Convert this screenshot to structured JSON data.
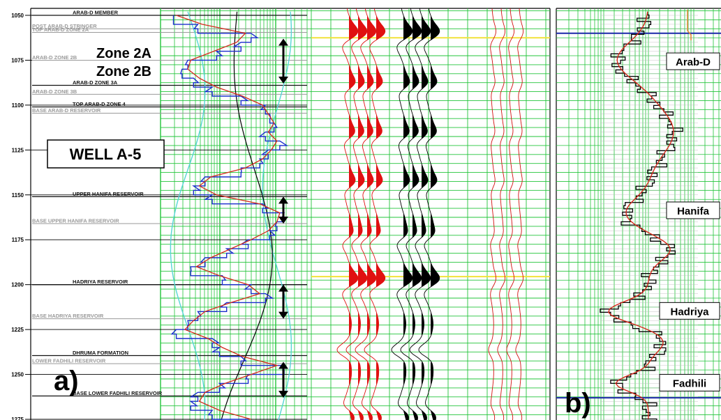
{
  "panel_a": {
    "label": "a)",
    "well_label": "WELL A-5",
    "zone_labels": [
      "Zone 2A",
      "Zone 2B"
    ]
  },
  "panel_b": {
    "label": "b)"
  },
  "chart_data": [
    {
      "type": "line",
      "panel": "a",
      "y_ticks": [
        1050,
        1075,
        1100,
        1125,
        1150,
        1175,
        1200,
        1225,
        1250,
        1275
      ],
      "ylim": [
        1048,
        1276
      ],
      "grid": true,
      "horizons": [
        {
          "name": "ARAB-D MEMBER",
          "depth": 1050,
          "style": "dark"
        },
        {
          "name": "POST ARAB-D STRINGER",
          "depth": 1057.5,
          "style": "grey"
        },
        {
          "name": "TOP ARAB-D ZONE 2A",
          "depth": 1059.5,
          "style": "grey"
        },
        {
          "name": "ARAB-D ZONE 2B",
          "depth": 1075,
          "style": "grey"
        },
        {
          "name": "ARAB-D ZONE 3A",
          "depth": 1089,
          "style": "dark"
        },
        {
          "name": "ARAB-D ZONE 3B",
          "depth": 1094,
          "style": "grey"
        },
        {
          "name": "TOP ARAB-D ZONE 4",
          "depth": 1101,
          "style": "dark"
        },
        {
          "name": "BASE ARAB-D RESERVOIR",
          "depth": 1104.5,
          "style": "grey"
        },
        {
          "name": "UPPER HANIFA RESERVOIR",
          "depth": 1151,
          "style": "dark"
        },
        {
          "name": "BASE UPPER HANIFA RESERVOIR",
          "depth": 1166,
          "style": "grey"
        },
        {
          "name": "HADRIYA RESERVOIR",
          "depth": 1200,
          "style": "dark"
        },
        {
          "name": "BASE HADRIYA RESERVOIR",
          "depth": 1219,
          "style": "grey"
        },
        {
          "name": "DHRUMA FORMATION",
          "depth": 1239.5,
          "style": "dark"
        },
        {
          "name": "LOWER FADHILI RESERVOIR",
          "depth": 1244,
          "style": "grey"
        },
        {
          "name": "BASE LOWER FADHILI RESERVOIR",
          "depth": 1262,
          "style": "dark"
        }
      ],
      "reservoir_intervals": [
        {
          "top": 1063,
          "base": 1088
        },
        {
          "top": 1151,
          "base": 1166
        },
        {
          "top": 1200,
          "base": 1219
        },
        {
          "top": 1243,
          "base": 1263
        }
      ],
      "seismic_events": [
        1062.5,
        1195.5
      ],
      "series": [
        {
          "color": "#1a2ecc",
          "x_frac": [
            0.08,
            0.25,
            0.62,
            0.55,
            0.38,
            0.18,
            0.14,
            0.22,
            0.35,
            0.55,
            0.72,
            0.75,
            0.78,
            0.72,
            0.82,
            0.74,
            0.68,
            0.55,
            0.3,
            0.22,
            0.35,
            0.7,
            0.85,
            0.8,
            0.75,
            0.6,
            0.45,
            0.3,
            0.2,
            0.42,
            0.62,
            0.72,
            0.45,
            0.25,
            0.18,
            0.1,
            0.35,
            0.4,
            0.55,
            0.85,
            0.6,
            0.4,
            0.25,
            0.2,
            0.35,
            0.6
          ]
        },
        {
          "color": "#d42a1c",
          "x_frac": [
            0.1,
            0.28,
            0.58,
            0.52,
            0.36,
            0.2,
            0.18,
            0.26,
            0.38,
            0.56,
            0.7,
            0.74,
            0.78,
            0.74,
            0.8,
            0.76,
            0.7,
            0.58,
            0.34,
            0.26,
            0.38,
            0.68,
            0.82,
            0.8,
            0.74,
            0.62,
            0.48,
            0.34,
            0.24,
            0.4,
            0.6,
            0.68,
            0.48,
            0.3,
            0.22,
            0.16,
            0.32,
            0.42,
            0.56,
            0.8,
            0.62,
            0.44,
            0.3,
            0.26,
            0.4,
            0.62
          ]
        }
      ]
    },
    {
      "type": "line",
      "panel": "b",
      "labels": [
        {
          "name": "Arab-D",
          "depth": 1076
        },
        {
          "name": "Hanifa",
          "depth": 1159
        },
        {
          "name": "Hadriya",
          "depth": 1215
        },
        {
          "name": "Fadhili",
          "depth": 1255
        }
      ],
      "boundaries": [
        1060,
        1263
      ],
      "grid": true
    }
  ]
}
